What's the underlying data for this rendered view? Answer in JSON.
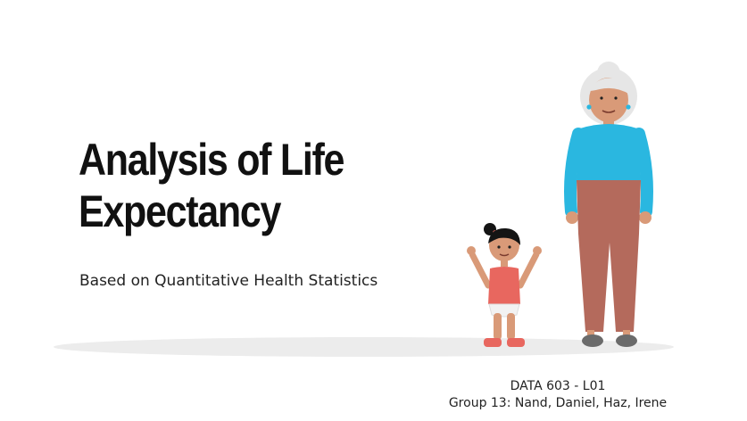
{
  "slide": {
    "title_line1": "Analysis of Life",
    "title_line2": "Expectancy",
    "subtitle": "Based on Quantitative Health Statistics",
    "course": "DATA 603 - L01",
    "group": "Group 13: Nand, Daniel, Haz, Irene"
  },
  "illustration": {
    "figures": [
      "toddler-girl-illustration",
      "elderly-woman-illustration"
    ],
    "colors": {
      "skin": "#d99a78",
      "elder_top": "#2ab7e0",
      "elder_pants": "#b46a5c",
      "elder_hair": "#e6e6e6",
      "child_dress": "#e8675f",
      "child_hair": "#141414",
      "shoes": "#6b6b6b",
      "ground": "#ececec"
    }
  }
}
